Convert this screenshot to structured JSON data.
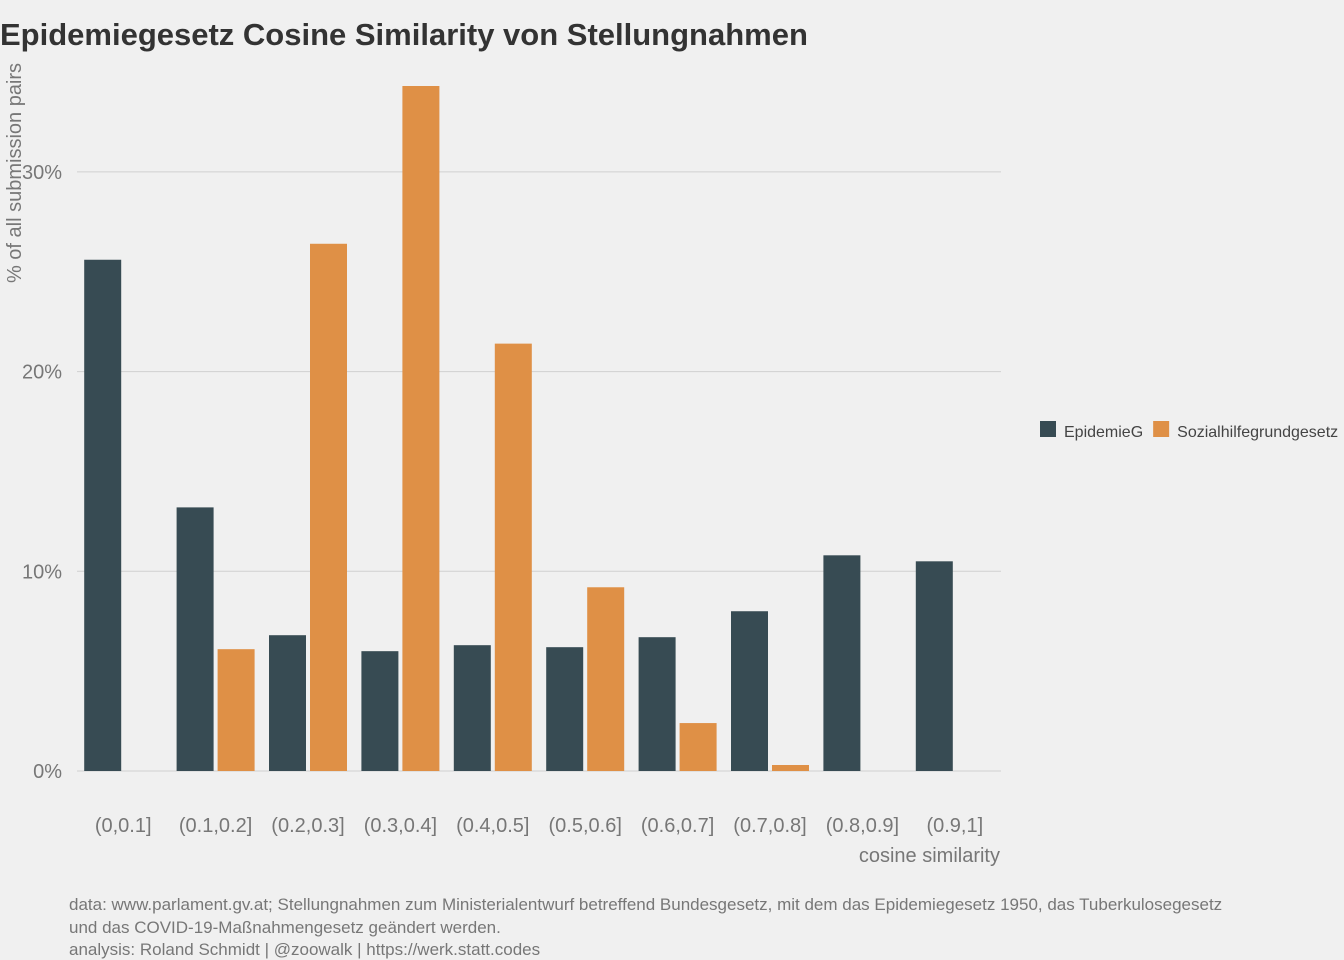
{
  "chart_data": {
    "type": "bar",
    "title": "Epidemiegesetz Cosine Similarity von Stellungnahmen",
    "xlabel": "cosine similarity",
    "ylabel": "% of all submission pairs",
    "categories": [
      "(0,0.1]",
      "(0.1,0.2]",
      "(0.2,0.3]",
      "(0.3,0.4]",
      "(0.4,0.5]",
      "(0.5,0.6]",
      "(0.6,0.7]",
      "(0.7,0.8]",
      "(0.8,0.9]",
      "(0.9,1]"
    ],
    "series": [
      {
        "name": "EpidemieG",
        "color": "#374b53",
        "values": [
          25.6,
          13.2,
          6.8,
          6.0,
          6.3,
          6.2,
          6.7,
          8.0,
          10.8,
          10.5
        ]
      },
      {
        "name": "Sozialhilfegrundgesetz",
        "color": "#df9046",
        "values": [
          null,
          6.1,
          26.4,
          34.3,
          21.4,
          9.2,
          2.4,
          0.3,
          null,
          null
        ]
      }
    ],
    "ylim": [
      0,
      34.3
    ],
    "yticks": [
      0,
      10,
      20,
      30
    ],
    "ytick_labels": [
      "0%",
      "10%",
      "20%",
      "30%"
    ],
    "grid": true,
    "legend_position": "right",
    "caption_lines": [
      "data: www.parlament.gv.at; Stellungnahmen zum Ministerialentwurf betreffend Bundesgesetz, mit dem das Epidemiegesetz 1950, das Tuberkulosegesetz",
      "und das COVID-19-Maßnahmengesetz geändert werden.",
      "analysis: Roland Schmidt | @zoowalk | https://werk.statt.codes"
    ]
  }
}
